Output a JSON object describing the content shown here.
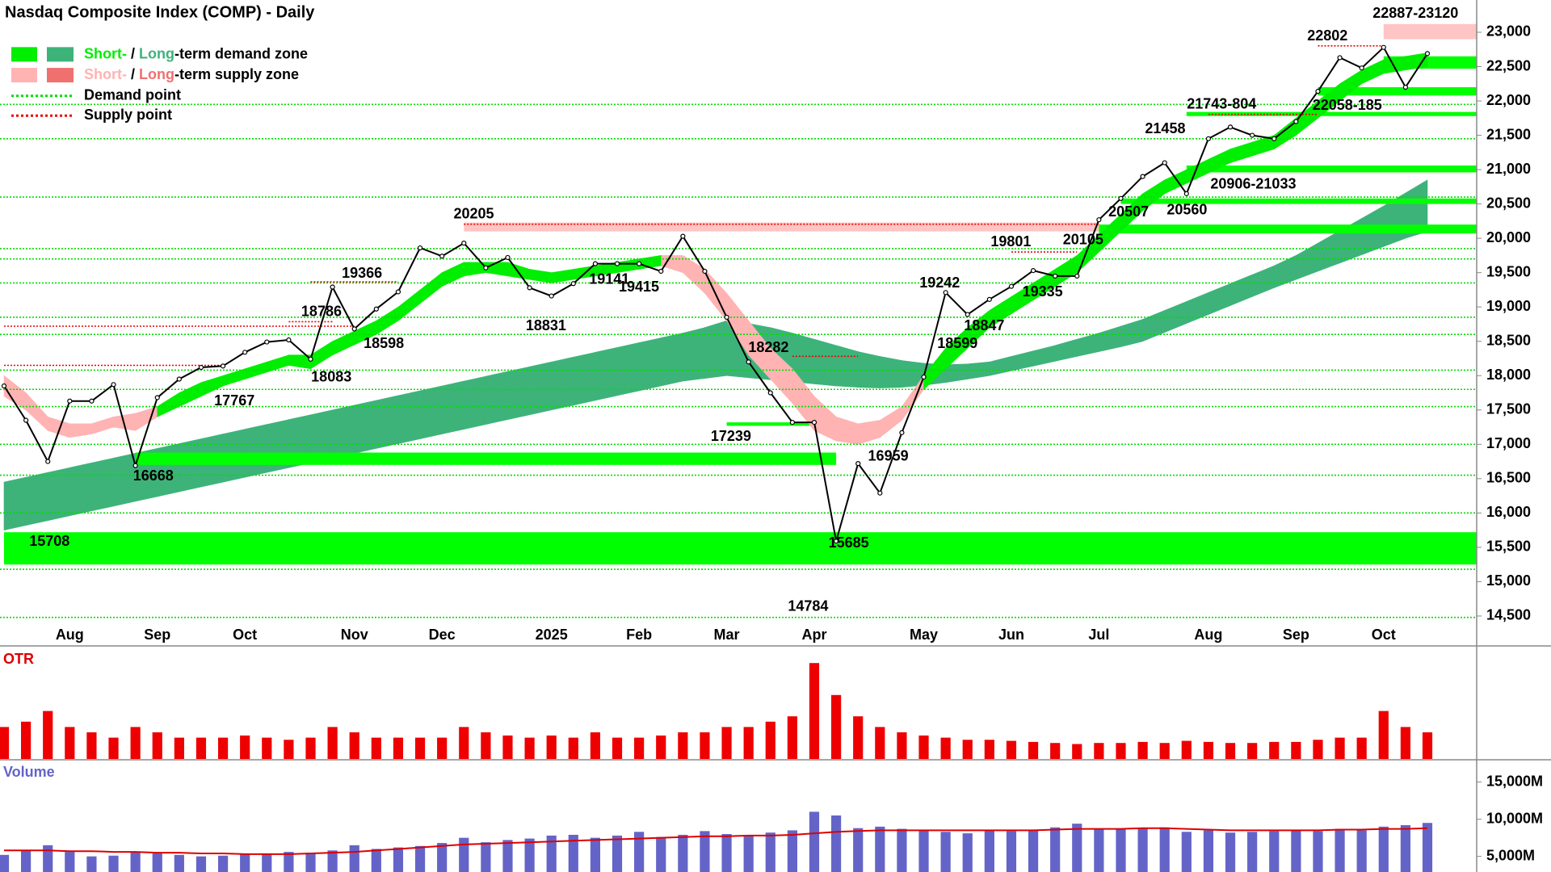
{
  "chart_data": [
    {
      "type": "line",
      "title": "Nasdaq Composite Index (COMP) - Daily",
      "color": "#000000",
      "categories": [
        null,
        null,
        null,
        "Aug",
        null,
        null,
        null,
        "Sep",
        null,
        null,
        null,
        "Oct",
        null,
        null,
        null,
        null,
        "Nov",
        null,
        null,
        null,
        "Dec",
        null,
        null,
        null,
        null,
        "2025",
        null,
        null,
        null,
        "Feb",
        null,
        null,
        null,
        "Mar",
        null,
        null,
        null,
        "Apr",
        null,
        null,
        null,
        null,
        "May",
        null,
        null,
        null,
        "Jun",
        null,
        null,
        null,
        "Jul",
        null,
        null,
        null,
        null,
        "Aug",
        null,
        null,
        null,
        "Sep",
        null,
        null,
        null,
        "Oct",
        null,
        null
      ],
      "values": [
        17850,
        17350,
        16750,
        17630,
        17630,
        17870,
        16690,
        17680,
        17950,
        18120,
        18140,
        18340,
        18490,
        18520,
        18240,
        19290,
        18680,
        18970,
        19220,
        19860,
        19740,
        19930,
        19570,
        19720,
        19280,
        19160,
        19340,
        19630,
        19630,
        19630,
        19520,
        20030,
        19520,
        18850,
        18200,
        17750,
        17320,
        17320,
        15590,
        16720,
        16290,
        17170,
        17980,
        19210,
        18890,
        19110,
        19300,
        19530,
        19450,
        19450,
        20270,
        20580,
        20900,
        21100,
        20650,
        21450,
        21620,
        21500,
        21450,
        21700,
        22140,
        22630,
        22480,
        22780,
        22200,
        22690
      ],
      "ylim": [
        14370,
        23470
      ],
      "yticks": [
        {
          "value": 14500,
          "label": "14,500"
        },
        {
          "value": 15000,
          "label": "15,000"
        },
        {
          "value": 15500,
          "label": "15,500"
        },
        {
          "value": 16000,
          "label": "16,000"
        },
        {
          "value": 16500,
          "label": "16,500"
        },
        {
          "value": 17000,
          "label": "17,000"
        },
        {
          "value": 17500,
          "label": "17,500"
        },
        {
          "value": 18000,
          "label": "18,000"
        },
        {
          "value": 18500,
          "label": "18,500"
        },
        {
          "value": 19000,
          "label": "19,000"
        },
        {
          "value": 19500,
          "label": "19,500"
        },
        {
          "value": 20000,
          "label": "20,000"
        },
        {
          "value": 20500,
          "label": "20,500"
        },
        {
          "value": 21000,
          "label": "21,000"
        },
        {
          "value": 21500,
          "label": "21,500"
        },
        {
          "value": 22000,
          "label": "22,000"
        },
        {
          "value": 22500,
          "label": "22,500"
        },
        {
          "value": 23000,
          "label": "23,000"
        }
      ],
      "legend": [
        {
          "parts": [
            "Short-",
            " / ",
            "Long",
            "-term demand zone"
          ],
          "colors": [
            "#00ee00",
            "#3db37a"
          ]
        },
        {
          "parts": [
            "Short-",
            " / ",
            "Long",
            "-term supply zone"
          ],
          "colors": [
            "#ffb3b3",
            "#f07070"
          ]
        },
        {
          "text": "Demand point",
          "color": "#00dd00"
        },
        {
          "text": "Supply point",
          "color": "#ee0000"
        }
      ],
      "long_term_band": {
        "color": "#3db37a",
        "lower": [
          15750,
          15820,
          15890,
          15960,
          16030,
          16100,
          16170,
          16240,
          16310,
          16380,
          16450,
          16520,
          16590,
          16660,
          16730,
          16800,
          16870,
          16940,
          17010,
          17080,
          17150,
          17220,
          17290,
          17360,
          17430,
          17500,
          17570,
          17640,
          17710,
          17780,
          17850,
          17920,
          17960,
          18000,
          17970,
          17940,
          17910,
          17880,
          17850,
          17830,
          17820,
          17830,
          17860,
          17900,
          17950,
          18000,
          18070,
          18140,
          18210,
          18280,
          18350,
          18420,
          18500,
          18630,
          18760,
          18890,
          19020,
          19150,
          19280,
          19400,
          19520,
          19640,
          19760,
          19880,
          20000,
          20100
        ],
        "upper": [
          16450,
          16520,
          16590,
          16660,
          16730,
          16800,
          16870,
          16940,
          17010,
          17080,
          17150,
          17220,
          17290,
          17360,
          17430,
          17500,
          17570,
          17640,
          17710,
          17780,
          17850,
          17920,
          17990,
          18060,
          18130,
          18200,
          18270,
          18340,
          18410,
          18480,
          18550,
          18620,
          18700,
          18800,
          18760,
          18700,
          18620,
          18530,
          18440,
          18350,
          18280,
          18220,
          18180,
          18160,
          18170,
          18200,
          18280,
          18360,
          18440,
          18530,
          18620,
          18720,
          18820,
          18950,
          19080,
          19210,
          19340,
          19470,
          19600,
          19750,
          19930,
          20110,
          20290,
          20470,
          20660,
          20850
        ]
      },
      "short_term_demand": {
        "color": "#00ee00",
        "lower": [
          null,
          null,
          null,
          null,
          null,
          null,
          null,
          17400,
          17550,
          17700,
          17850,
          17950,
          18050,
          18150,
          18100,
          18300,
          18450,
          18600,
          18800,
          19050,
          19300,
          19450,
          19500,
          19450,
          19400,
          19350,
          19400,
          19450,
          19500,
          19550,
          19600,
          null,
          null,
          null,
          null,
          null,
          null,
          null,
          null,
          null,
          null,
          null,
          17800,
          18100,
          18400,
          18700,
          18900,
          19100,
          19300,
          19500,
          19800,
          20100,
          20400,
          20650,
          20800,
          20950,
          21100,
          21200,
          21300,
          21500,
          21750,
          22000,
          22250,
          22400,
          22450,
          22500
        ],
        "upper": [
          null,
          null,
          null,
          null,
          null,
          null,
          null,
          17550,
          17750,
          17900,
          18000,
          18100,
          18200,
          18300,
          18300,
          18500,
          18650,
          18800,
          19000,
          19250,
          19500,
          19650,
          19650,
          19650,
          19550,
          19500,
          19550,
          19600,
          19650,
          19700,
          19750,
          null,
          null,
          null,
          null,
          null,
          null,
          null,
          null,
          null,
          null,
          null,
          18000,
          18400,
          18700,
          18950,
          19150,
          19350,
          19550,
          19750,
          20050,
          20350,
          20650,
          20850,
          21000,
          21150,
          21300,
          21400,
          21500,
          21750,
          22000,
          22250,
          22450,
          22600,
          22650,
          22700
        ]
      },
      "short_term_supply": {
        "color": "#ffb3b3",
        "lower": [
          17700,
          17500,
          17200,
          17100,
          17150,
          17250,
          17200,
          17400,
          null,
          null,
          null,
          null,
          null,
          null,
          null,
          null,
          null,
          null,
          null,
          null,
          null,
          null,
          null,
          null,
          null,
          null,
          null,
          null,
          null,
          null,
          19600,
          19500,
          19200,
          18800,
          18300,
          17950,
          17600,
          17200,
          17050,
          17000,
          17100,
          17350,
          17800,
          null,
          null,
          null,
          null,
          null,
          null,
          null,
          null,
          null,
          null,
          null,
          null,
          null,
          null,
          null,
          null,
          null,
          null,
          null,
          null,
          null,
          null,
          null
        ],
        "upper": [
          18000,
          17750,
          17400,
          17300,
          17300,
          17400,
          17450,
          17550,
          null,
          null,
          null,
          null,
          null,
          null,
          null,
          null,
          null,
          null,
          null,
          null,
          null,
          null,
          null,
          null,
          null,
          null,
          null,
          null,
          null,
          null,
          19750,
          19750,
          19550,
          19200,
          18800,
          18400,
          18100,
          17700,
          17400,
          17300,
          17350,
          17550,
          18000,
          null,
          null,
          null,
          null,
          null,
          null,
          null,
          null,
          null,
          null,
          null,
          null,
          null,
          null,
          null,
          null,
          null,
          null,
          null,
          null,
          null,
          null,
          null
        ]
      },
      "demand_zones": {
        "color": "#00ff00",
        "zones": [
          {
            "start": 0,
            "low": 15250,
            "high": 15720
          },
          {
            "start": 6,
            "end": 38,
            "low": 16700,
            "high": 16880
          },
          {
            "start": 33,
            "end": 37,
            "low": 17270,
            "high": 17320
          },
          {
            "start": 50,
            "low": 20070,
            "high": 20200
          },
          {
            "start": 51,
            "low": 20500,
            "high": 20580
          },
          {
            "start": 54,
            "low": 20960,
            "high": 21060
          },
          {
            "start": 54,
            "low": 21780,
            "high": 21840
          },
          {
            "start": 60,
            "low": 22080,
            "high": 22200
          },
          {
            "start": 63,
            "low": 22470,
            "high": 22650
          }
        ]
      },
      "supply_zones": {
        "color": "#ffc4c4",
        "zones": [
          {
            "start": 21,
            "end": 50,
            "low": 20100,
            "high": 20230
          },
          {
            "start": 63,
            "low": 22900,
            "high": 23120
          }
        ]
      },
      "demand_points": {
        "color": "#00dd00",
        "values": [
          14480,
          15180,
          16000,
          16550,
          17000,
          17550,
          17800,
          18080,
          18600,
          18850,
          19350,
          19700,
          19850,
          20600,
          21450,
          21950
        ]
      },
      "supply_points": {
        "color": "#ee0000",
        "points": [
          {
            "value": 18720,
            "start": 0,
            "end": 16
          },
          {
            "value": 18150,
            "start": 0,
            "end": 10
          },
          {
            "value": 18786,
            "start": 13,
            "end": 15
          },
          {
            "value": 19366,
            "start": 14,
            "end": 18
          },
          {
            "value": 20205,
            "start": 21,
            "end": 50
          },
          {
            "value": 18282,
            "start": 36,
            "end": 39
          },
          {
            "value": 19801,
            "start": 46,
            "end": 49
          },
          {
            "value": 21804,
            "start": 55,
            "end": 60
          },
          {
            "value": 22802,
            "start": 60,
            "end": 63
          }
        ]
      },
      "annotations": [
        "15708",
        "16668",
        "17767",
        "18083",
        "18598",
        "18786",
        "19366",
        "20205",
        "18831",
        "19141",
        "19415",
        "17239",
        "18282",
        "14784",
        "15685",
        "16959",
        "19242",
        "18599",
        "18847",
        "19801",
        "19335",
        "20105",
        "20507",
        "20560",
        "21458",
        "21743-804",
        "20906-21033",
        "22058-185",
        "22802",
        "22887-23120"
      ]
    },
    {
      "type": "bar",
      "title": "OTR",
      "color": "#ee0000",
      "ylim": [
        0,
        1
      ],
      "values": [
        0.3,
        0.35,
        0.45,
        0.3,
        0.25,
        0.2,
        0.3,
        0.25,
        0.2,
        0.2,
        0.2,
        0.22,
        0.2,
        0.18,
        0.2,
        0.3,
        0.25,
        0.2,
        0.2,
        0.2,
        0.2,
        0.3,
        0.25,
        0.22,
        0.2,
        0.22,
        0.2,
        0.25,
        0.2,
        0.2,
        0.22,
        0.25,
        0.25,
        0.3,
        0.3,
        0.35,
        0.4,
        0.9,
        0.6,
        0.4,
        0.3,
        0.25,
        0.22,
        0.2,
        0.18,
        0.18,
        0.17,
        0.16,
        0.15,
        0.14,
        0.15,
        0.15,
        0.16,
        0.15,
        0.17,
        0.16,
        0.15,
        0.15,
        0.16,
        0.16,
        0.18,
        0.2,
        0.2,
        0.45,
        0.3,
        0.25
      ]
    },
    {
      "type": "bar",
      "title": "Volume",
      "color": "#6464c8",
      "ma_color": "#dd0000",
      "ylim": [
        2900,
        17450
      ],
      "yticks": [
        {
          "value": 5000,
          "label": "5,000M"
        },
        {
          "value": 10000,
          "label": "10,000M"
        },
        {
          "value": 15000,
          "label": "15,000M"
        }
      ],
      "values": [
        5200,
        5800,
        6500,
        5600,
        5000,
        5100,
        5600,
        5400,
        5200,
        5000,
        5100,
        5300,
        5400,
        5600,
        5500,
        5800,
        6500,
        6000,
        6200,
        6400,
        6800,
        7500,
        6900,
        7200,
        7400,
        7800,
        7900,
        7500,
        7800,
        8300,
        7600,
        7900,
        8400,
        8000,
        7800,
        8200,
        8500,
        11000,
        10500,
        8800,
        9000,
        8700,
        8500,
        8300,
        8100,
        8600,
        8400,
        8500,
        8900,
        9400,
        8600,
        8700,
        8800,
        8900,
        8300,
        8500,
        8200,
        8300,
        8400,
        8600,
        8400,
        8700,
        8500,
        9000,
        9200,
        9500
      ],
      "ma": [
        5800,
        5800,
        5800,
        5700,
        5700,
        5600,
        5600,
        5500,
        5500,
        5400,
        5400,
        5300,
        5300,
        5300,
        5400,
        5500,
        5600,
        5800,
        6000,
        6200,
        6400,
        6600,
        6700,
        6800,
        6900,
        7000,
        7100,
        7200,
        7300,
        7400,
        7500,
        7600,
        7700,
        7700,
        7800,
        7800,
        7900,
        8100,
        8300,
        8400,
        8500,
        8500,
        8500,
        8500,
        8500,
        8500,
        8500,
        8500,
        8600,
        8700,
        8700,
        8700,
        8800,
        8800,
        8700,
        8600,
        8500,
        8500,
        8500,
        8500,
        8500,
        8600,
        8600,
        8700,
        8700,
        8800
      ]
    }
  ]
}
